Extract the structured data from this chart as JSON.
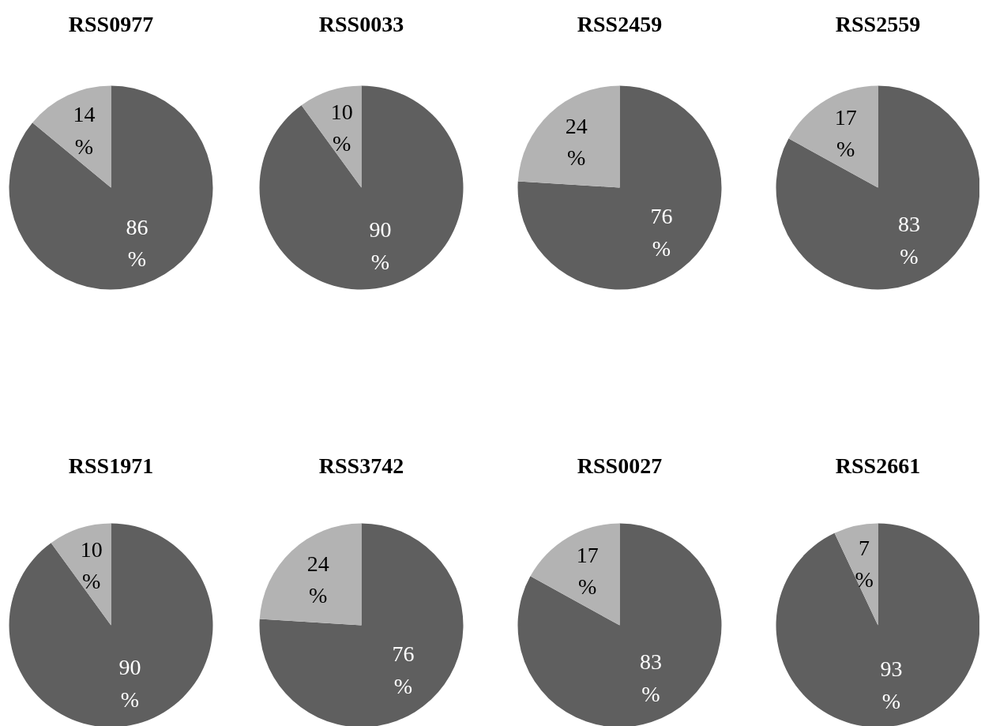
{
  "chart_data": [
    {
      "type": "pie",
      "title": "RSS0977",
      "categories": [
        null,
        null
      ],
      "values": [
        86,
        14
      ],
      "colors": [
        "#5f5f5f",
        "#b3b3b3"
      ],
      "value_labels": [
        "86%",
        "14%"
      ]
    },
    {
      "type": "pie",
      "title": "RSS0033",
      "categories": [
        null,
        null
      ],
      "values": [
        90,
        10
      ],
      "colors": [
        "#5f5f5f",
        "#b3b3b3"
      ],
      "value_labels": [
        "90%",
        "10%"
      ]
    },
    {
      "type": "pie",
      "title": "RSS2459",
      "categories": [
        null,
        null
      ],
      "values": [
        76,
        24
      ],
      "colors": [
        "#5f5f5f",
        "#b3b3b3"
      ],
      "value_labels": [
        "76%",
        "24%"
      ]
    },
    {
      "type": "pie",
      "title": "RSS2559",
      "categories": [
        null,
        null
      ],
      "values": [
        83,
        17
      ],
      "colors": [
        "#5f5f5f",
        "#b3b3b3"
      ],
      "value_labels": [
        "83%",
        "17%"
      ]
    },
    {
      "type": "pie",
      "title": "RSS1971",
      "categories": [
        null,
        null
      ],
      "values": [
        90,
        10
      ],
      "colors": [
        "#5f5f5f",
        "#b3b3b3"
      ],
      "value_labels": [
        "90%",
        "10%"
      ]
    },
    {
      "type": "pie",
      "title": "RSS3742",
      "categories": [
        null,
        null
      ],
      "values": [
        76,
        24
      ],
      "colors": [
        "#5f5f5f",
        "#b3b3b3"
      ],
      "value_labels": [
        "76%",
        "24%"
      ]
    },
    {
      "type": "pie",
      "title": "RSS0027",
      "categories": [
        null,
        null
      ],
      "values": [
        83,
        17
      ],
      "colors": [
        "#5f5f5f",
        "#b3b3b3"
      ],
      "value_labels": [
        "83%",
        "17%"
      ]
    },
    {
      "type": "pie",
      "title": "RSS2661",
      "categories": [
        null,
        null
      ],
      "values": [
        93,
        7
      ],
      "colors": [
        "#5f5f5f",
        "#b3b3b3"
      ],
      "value_labels": [
        "93%",
        "7%"
      ]
    }
  ]
}
